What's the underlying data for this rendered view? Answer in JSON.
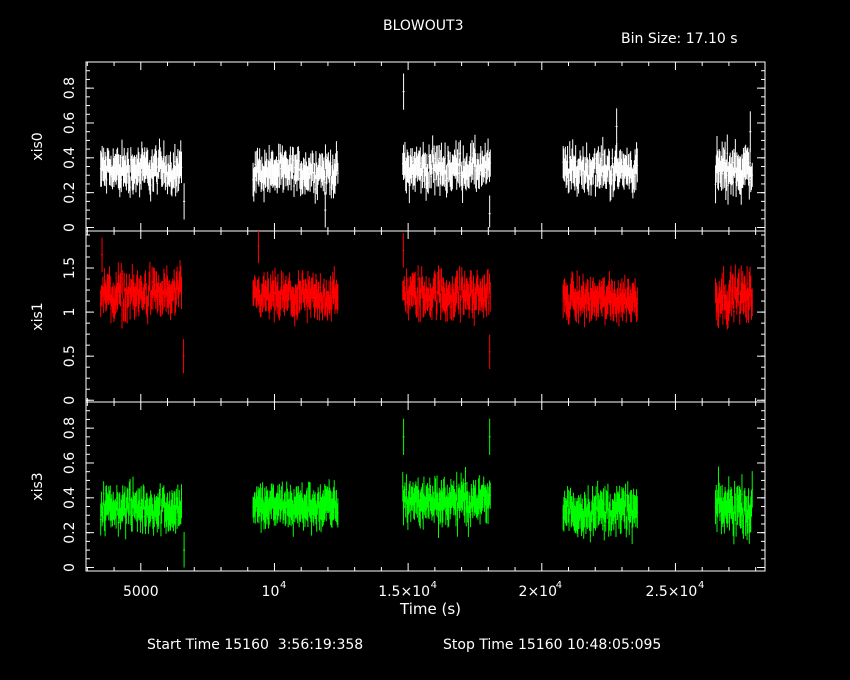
{
  "title": "BLOWOUT3",
  "bin_size": "Bin Size: 17.10 s",
  "xlabel": "Time (s)",
  "x_tick_labels": [
    "5000",
    "10",
    "1.5×10",
    "2×10",
    "2.5×10"
  ],
  "x_tick_exponent": "4",
  "start_time": "Start Time 15160  3:56:19:358",
  "stop_time": "Stop Time 15160 10:48:05:095",
  "chart_data": [
    {
      "type": "line",
      "name": "xis0",
      "ylabel": "xis0",
      "color": "#ffffff",
      "xlim": [
        2950,
        28350
      ],
      "ylim": [
        -0.02,
        0.95
      ],
      "y_ticks": [
        0,
        0.2,
        0.4,
        0.6,
        0.8
      ],
      "y_tick_labels": [
        "0",
        "0.2",
        "0.4",
        "0.6",
        "0.8"
      ],
      "segments": [
        {
          "x_start": 3500,
          "x_end": 6550,
          "base": 0.33,
          "spread": 0.08,
          "error": 0.08,
          "spikes": [
            {
              "x": 6620,
              "y": 0.15
            }
          ]
        },
        {
          "x_start": 9200,
          "x_end": 12400,
          "base": 0.32,
          "spread": 0.07,
          "error": 0.08,
          "spikes": [
            {
              "x": 11900,
              "y": 0.1
            }
          ]
        },
        {
          "x_start": 14800,
          "x_end": 18100,
          "base": 0.34,
          "spread": 0.08,
          "error": 0.08,
          "spikes": [
            {
              "x": 14830,
              "y": 0.78
            },
            {
              "x": 18050,
              "y": 0.08
            }
          ]
        },
        {
          "x_start": 20800,
          "x_end": 23600,
          "base": 0.33,
          "spread": 0.08,
          "error": 0.08,
          "spikes": [
            {
              "x": 22800,
              "y": 0.58
            }
          ]
        },
        {
          "x_start": 26500,
          "x_end": 27900,
          "base": 0.33,
          "spread": 0.09,
          "error": 0.09,
          "spikes": [
            {
              "x": 27800,
              "y": 0.55
            }
          ]
        }
      ]
    },
    {
      "type": "line",
      "name": "xis1",
      "ylabel": "xis1",
      "color": "#ff0000",
      "xlim": [
        2950,
        28350
      ],
      "ylim": [
        -0.02,
        1.92
      ],
      "y_ticks": [
        0,
        0.5,
        1,
        1.5
      ],
      "y_tick_labels": [
        "0",
        "0.5",
        "1",
        "1.5"
      ],
      "segments": [
        {
          "x_start": 3500,
          "x_end": 6550,
          "base": 1.2,
          "spread": 0.18,
          "error": 0.15,
          "spikes": [
            {
              "x": 3550,
              "y": 1.65
            },
            {
              "x": 6600,
              "y": 0.5
            }
          ]
        },
        {
          "x_start": 9200,
          "x_end": 12400,
          "base": 1.17,
          "spread": 0.15,
          "error": 0.15,
          "spikes": [
            {
              "x": 9400,
              "y": 1.75
            }
          ]
        },
        {
          "x_start": 14800,
          "x_end": 18100,
          "base": 1.2,
          "spread": 0.17,
          "error": 0.15,
          "spikes": [
            {
              "x": 14820,
              "y": 1.7
            },
            {
              "x": 18050,
              "y": 0.55
            }
          ]
        },
        {
          "x_start": 20800,
          "x_end": 23600,
          "base": 1.15,
          "spread": 0.14,
          "error": 0.15,
          "spikes": []
        },
        {
          "x_start": 26500,
          "x_end": 27900,
          "base": 1.18,
          "spread": 0.16,
          "error": 0.17,
          "spikes": []
        }
      ]
    },
    {
      "type": "line",
      "name": "xis3",
      "ylabel": "xis3",
      "color": "#00ff00",
      "xlim": [
        2950,
        28350
      ],
      "ylim": [
        -0.02,
        0.95
      ],
      "y_ticks": [
        0,
        0.2,
        0.4,
        0.6,
        0.8
      ],
      "y_tick_labels": [
        "0",
        "0.2",
        "0.4",
        "0.6",
        "0.8"
      ],
      "segments": [
        {
          "x_start": 3500,
          "x_end": 6550,
          "base": 0.34,
          "spread": 0.08,
          "error": 0.08,
          "spikes": [
            {
              "x": 6620,
              "y": 0.1
            }
          ]
        },
        {
          "x_start": 9200,
          "x_end": 12400,
          "base": 0.35,
          "spread": 0.07,
          "error": 0.08,
          "spikes": []
        },
        {
          "x_start": 14800,
          "x_end": 18100,
          "base": 0.38,
          "spread": 0.08,
          "error": 0.08,
          "spikes": [
            {
              "x": 14830,
              "y": 0.75
            },
            {
              "x": 18050,
              "y": 0.75
            }
          ]
        },
        {
          "x_start": 20800,
          "x_end": 23600,
          "base": 0.33,
          "spread": 0.08,
          "error": 0.08,
          "spikes": []
        },
        {
          "x_start": 26500,
          "x_end": 27900,
          "base": 0.34,
          "spread": 0.09,
          "error": 0.09,
          "spikes": []
        }
      ]
    }
  ]
}
